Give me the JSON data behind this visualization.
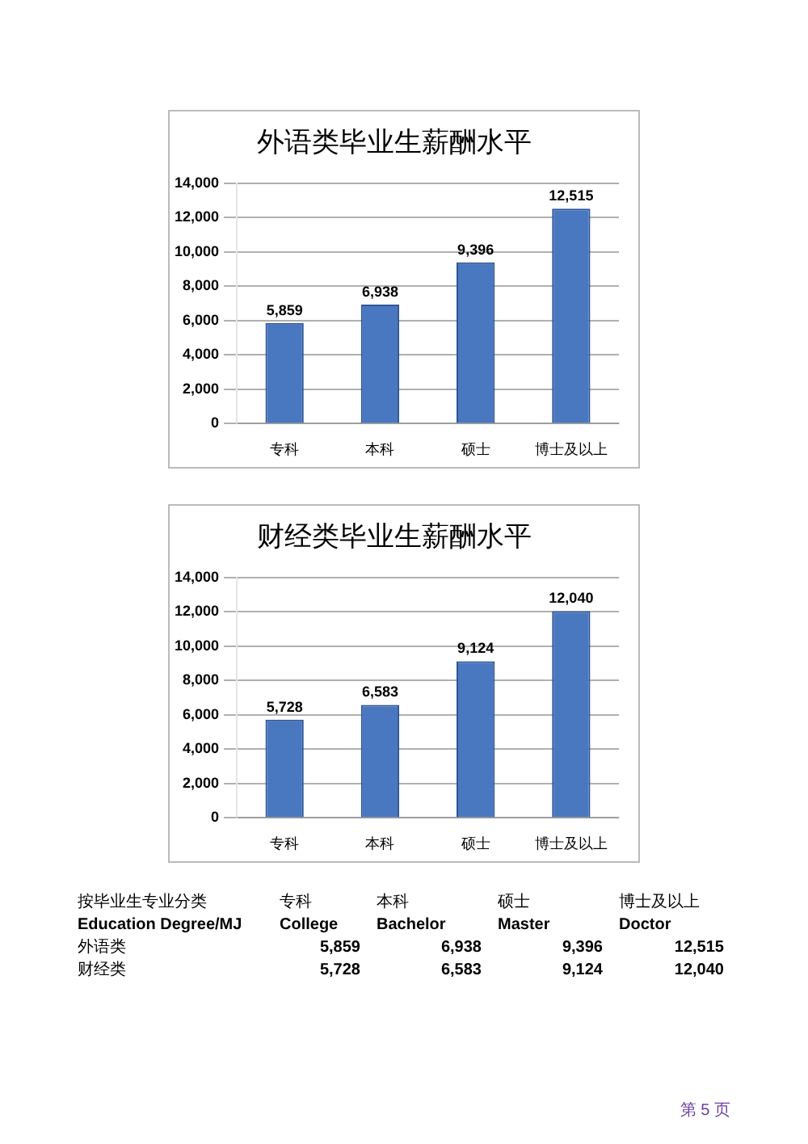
{
  "chart_data": [
    {
      "type": "bar",
      "title": "外语类毕业生薪酬水平",
      "categories": [
        "专科",
        "本科",
        "硕士",
        "博士及以上"
      ],
      "values": [
        5859,
        6938,
        9396,
        12515
      ],
      "value_labels": [
        "5,859",
        "6,938",
        "9,396",
        "12,515"
      ],
      "color": "#4a78c0",
      "ylim": [
        0,
        14000
      ],
      "yticks": [
        {
          "value": 0,
          "label": "0"
        },
        {
          "value": 2000,
          "label": "2,000"
        },
        {
          "value": 4000,
          "label": "4,000"
        },
        {
          "value": 6000,
          "label": "6,000"
        },
        {
          "value": 8000,
          "label": "8,000"
        },
        {
          "value": 10000,
          "label": "10,000"
        },
        {
          "value": 12000,
          "label": "12,000"
        },
        {
          "value": 14000,
          "label": "14,000"
        }
      ],
      "grid": "y"
    },
    {
      "type": "bar",
      "title": "财经类毕业生薪酬水平",
      "categories": [
        "专科",
        "本科",
        "硕士",
        "博士及以上"
      ],
      "values": [
        5728,
        6583,
        9124,
        12040
      ],
      "value_labels": [
        "5,728",
        "6,583",
        "9,124",
        "12,040"
      ],
      "color": "#4a78c0",
      "ylim": [
        0,
        14000
      ],
      "yticks": [
        {
          "value": 0,
          "label": "0"
        },
        {
          "value": 2000,
          "label": "2,000"
        },
        {
          "value": 4000,
          "label": "4,000"
        },
        {
          "value": 6000,
          "label": "6,000"
        },
        {
          "value": 8000,
          "label": "8,000"
        },
        {
          "value": 10000,
          "label": "10,000"
        },
        {
          "value": 12000,
          "label": "12,000"
        },
        {
          "value": 14000,
          "label": "14,000"
        }
      ],
      "grid": "y"
    },
    {
      "type": "other",
      "annotations": [
        "按毕业生专业分类",
        "专科",
        "本科",
        "硕士",
        "博士及以上",
        "Education Degree/MJ",
        "College",
        "Bachelor",
        "Master",
        "Doctor",
        "外语类",
        "5,859",
        "6,938",
        "9,396",
        "12,515",
        "财经类",
        "5,728",
        "6,583",
        "9,124",
        "12,040",
        "第 5 页"
      ]
    }
  ]
}
